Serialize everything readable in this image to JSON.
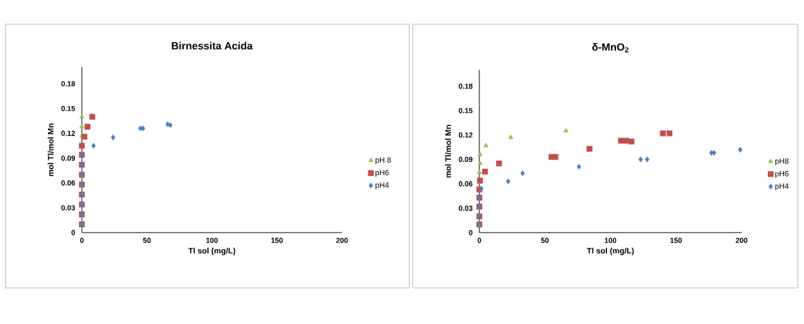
{
  "chart_data": [
    {
      "type": "scatter",
      "title": "Birnessita Acida",
      "xlabel": "Tl sol (mg/L)",
      "ylabel": "mol Tl/mol Mn",
      "xlim": [
        0,
        200
      ],
      "ylim": [
        0,
        0.2
      ],
      "xticks": [
        0,
        50,
        100,
        150,
        200
      ],
      "yticks": [
        0,
        0.03,
        0.06,
        0.09,
        0.12,
        0.15,
        0.18
      ],
      "legend": "right",
      "series": [
        {
          "name": "pH 8",
          "color": "#9bbb59",
          "marker": "triangle",
          "x": [
            0,
            0,
            0
          ],
          "values": [
            0.117,
            0.128,
            0.14
          ]
        },
        {
          "name": "pH6",
          "color": "#c0504d",
          "marker": "square",
          "x": [
            0,
            0,
            0,
            0,
            0,
            0,
            0,
            0,
            0,
            2,
            4.3,
            8
          ],
          "values": [
            0.01,
            0.022,
            0.034,
            0.046,
            0.058,
            0.07,
            0.082,
            0.094,
            0.105,
            0.116,
            0.128,
            0.14
          ]
        },
        {
          "name": "pH4",
          "color": "#4f81bd",
          "marker": "diamond",
          "x": [
            0,
            0,
            0,
            0,
            0,
            0,
            0,
            0,
            9,
            24,
            45,
            47,
            66,
            68
          ],
          "values": [
            0.01,
            0.022,
            0.034,
            0.046,
            0.058,
            0.07,
            0.082,
            0.094,
            0.105,
            0.115,
            0.126,
            0.126,
            0.131,
            0.13
          ]
        }
      ]
    },
    {
      "type": "scatter",
      "title": "δ-MnO$_{2}$",
      "xlabel": "Tl sol (mg/L)",
      "ylabel": "mol Tl/mol Mn",
      "xlim": [
        0,
        200
      ],
      "ylim": [
        0,
        0.2
      ],
      "xticks": [
        0,
        50,
        100,
        150,
        200
      ],
      "yticks": [
        0,
        0.03,
        0.06,
        0.09,
        0.12,
        0.15,
        0.18
      ],
      "legend": "right",
      "series": [
        {
          "name": "pH8",
          "color": "#9bbb59",
          "marker": "triangle",
          "x": [
            0,
            0,
            0.5,
            0.5,
            5,
            24,
            66
          ],
          "values": [
            0.062,
            0.074,
            0.085,
            0.096,
            0.107,
            0.117,
            0.125
          ]
        },
        {
          "name": "pH6",
          "color": "#c0504d",
          "marker": "square",
          "x": [
            0,
            0,
            0,
            0,
            0,
            0.5,
            4.3,
            15,
            55,
            58,
            84,
            108,
            112,
            116,
            140,
            145
          ],
          "values": [
            0.01,
            0.02,
            0.032,
            0.043,
            0.053,
            0.064,
            0.075,
            0.085,
            0.093,
            0.093,
            0.103,
            0.113,
            0.113,
            0.112,
            0.122,
            0.122
          ]
        },
        {
          "name": "pH4",
          "color": "#4f81bd",
          "marker": "diamond",
          "x": [
            0,
            0,
            0,
            0,
            1.5,
            22,
            33,
            76,
            123,
            128,
            177,
            179,
            199
          ],
          "values": [
            0.01,
            0.021,
            0.032,
            0.043,
            0.054,
            0.063,
            0.073,
            0.081,
            0.09,
            0.09,
            0.098,
            0.098,
            0.102
          ]
        }
      ]
    }
  ]
}
